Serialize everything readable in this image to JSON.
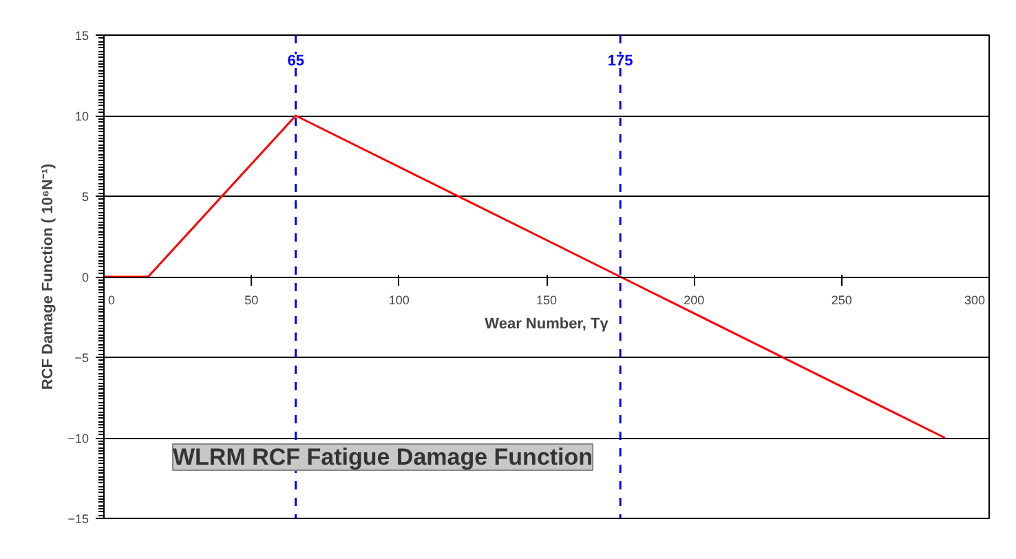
{
  "chart_data": {
    "type": "line",
    "xlabel": "Wear Number, Tγ",
    "ylabel": "RCF Damage Function ( 10⁶N⁻¹)",
    "x": [
      0,
      15,
      65,
      175,
      285
    ],
    "series": [
      {
        "color": "#ff0000",
        "values": [
          0,
          0,
          10,
          0,
          -10
        ]
      }
    ],
    "xlim": [
      0,
      300
    ],
    "ylim": [
      -15,
      15
    ],
    "xticks": [
      0,
      50,
      100,
      150,
      200,
      250,
      300
    ],
    "yticks": [
      -15,
      -10,
      -5,
      0,
      5,
      10,
      15
    ],
    "grid": "y",
    "marker": "none",
    "line_style": "solid",
    "ref_lines": [
      {
        "axis": "x",
        "value": 65,
        "label": "65",
        "color": "#0000ff",
        "line_style": "dashed"
      },
      {
        "axis": "x",
        "value": 175,
        "label": "175",
        "color": "#0000ff",
        "line_style": "dashed"
      }
    ],
    "annotations": [
      "WLRM RCF Fatigue Damage Function"
    ]
  }
}
